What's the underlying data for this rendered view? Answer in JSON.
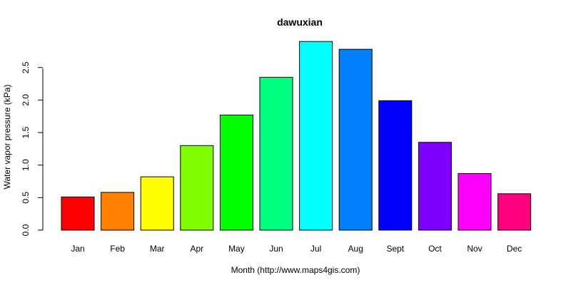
{
  "chart_data": {
    "type": "bar",
    "title": "dawuxian",
    "xlabel": "Month (http://www.maps4gis.com)",
    "ylabel": "Water vapor pressure (kPa)",
    "categories": [
      "Jan",
      "Feb",
      "Mar",
      "Apr",
      "May",
      "Jun",
      "Jul",
      "Aug",
      "Sept",
      "Oct",
      "Nov",
      "Dec"
    ],
    "values": [
      0.51,
      0.58,
      0.82,
      1.3,
      1.77,
      2.35,
      2.9,
      2.78,
      1.99,
      1.35,
      0.87,
      0.56
    ],
    "colors": [
      "#FF0000",
      "#FF8000",
      "#FFFF00",
      "#80FF00",
      "#00FF00",
      "#00FF80",
      "#00FFFF",
      "#0080FF",
      "#0000FF",
      "#8000FF",
      "#FF00FF",
      "#FF0080"
    ],
    "yticks": [
      0.0,
      0.5,
      1.0,
      1.5,
      2.0,
      2.5
    ],
    "ytick_labels": [
      "0.0",
      "0.5",
      "1.0",
      "1.5",
      "2.0",
      "2.5"
    ],
    "ylim": [
      0,
      2.9
    ],
    "grid": false,
    "legend": "none"
  }
}
